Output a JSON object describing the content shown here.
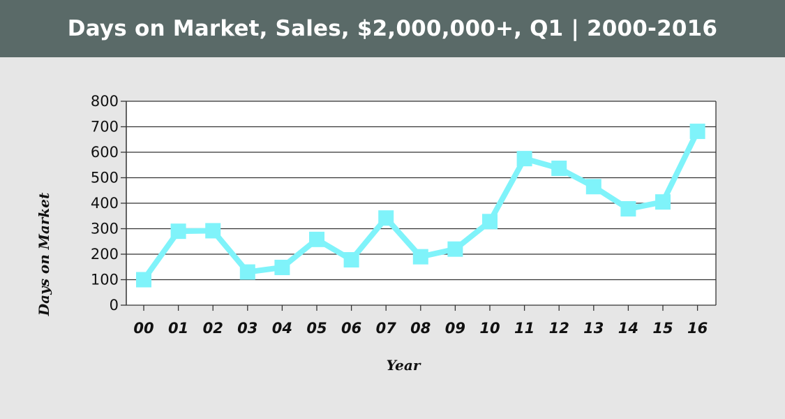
{
  "chart_data": {
    "type": "line",
    "title": "Days on Market, Sales, $2,000,000+, Q1 | 2000-2016",
    "xlabel": "Year",
    "ylabel": "Days on Market",
    "categories": [
      "00",
      "01",
      "02",
      "03",
      "04",
      "05",
      "06",
      "07",
      "08",
      "09",
      "10",
      "11",
      "12",
      "13",
      "14",
      "15",
      "16"
    ],
    "series": [
      {
        "values": [
          100,
          290,
          292,
          130,
          148,
          258,
          178,
          342,
          190,
          220,
          328,
          575,
          537,
          465,
          378,
          405,
          682
        ]
      }
    ],
    "ylim": [
      0,
      800
    ],
    "yticks": [
      "0",
      "100",
      "200",
      "300",
      "400",
      "500",
      "600",
      "700",
      "800"
    ],
    "grid": true,
    "legend": "none",
    "colors": {
      "line": "#7ff3fa",
      "header": "#5a6a68",
      "background": "#e6e6e6",
      "plot": "#ffffff"
    }
  }
}
